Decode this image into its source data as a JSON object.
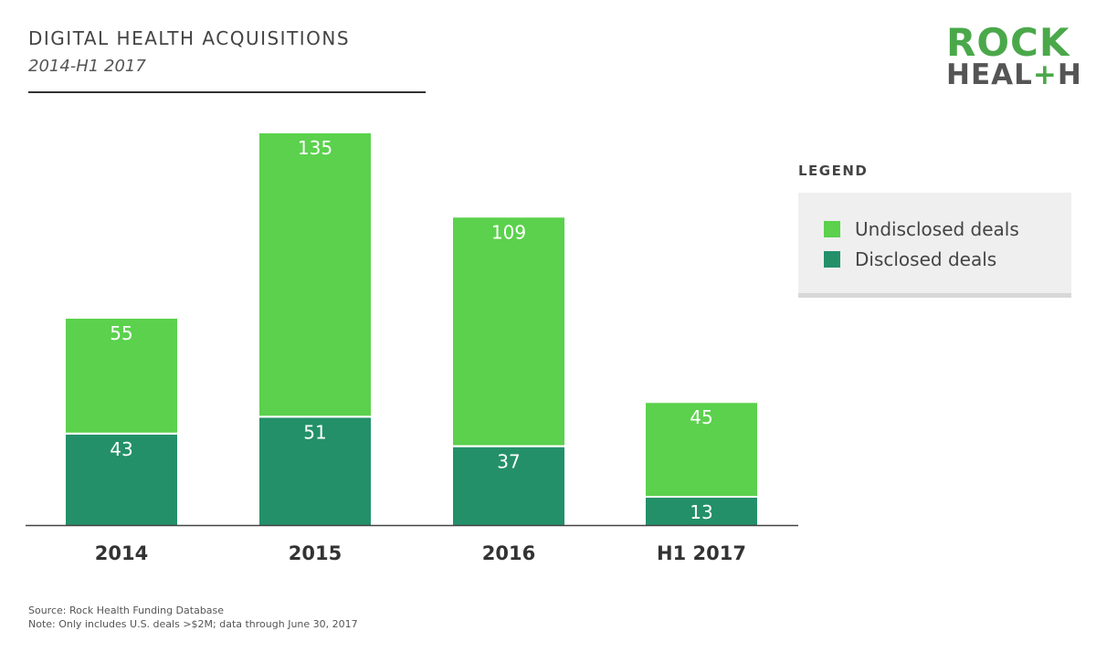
{
  "header": {
    "title": "DIGITAL HEALTH ACQUISITIONS",
    "subtitle": "2014-H1 2017"
  },
  "logo": {
    "line1": "ROCK",
    "line2_left": "HEAL",
    "line2_plus": "+",
    "line2_right": "H"
  },
  "legend": {
    "title": "LEGEND",
    "items": [
      {
        "label": "Undisclosed deals",
        "color": "#5bd14d"
      },
      {
        "label": "Disclosed deals",
        "color": "#23906a"
      }
    ]
  },
  "footer": {
    "source": "Source: Rock Health Funding Database",
    "note": "Note: Only includes U.S. deals >$2M; data through June 30, 2017"
  },
  "colors": {
    "undisclosed": "#5bd14d",
    "disclosed": "#23906a",
    "axis": "#444444",
    "label": "#ffffff"
  },
  "chart_data": {
    "type": "bar",
    "stacked": true,
    "categories": [
      "2014",
      "2015",
      "2016",
      "H1 2017"
    ],
    "series": [
      {
        "name": "Disclosed deals",
        "values": [
          43,
          51,
          37,
          13
        ]
      },
      {
        "name": "Undisclosed deals",
        "values": [
          55,
          135,
          109,
          45
        ]
      }
    ],
    "ylim": [
      0,
      186
    ],
    "grid": false,
    "legend_position": "right"
  }
}
